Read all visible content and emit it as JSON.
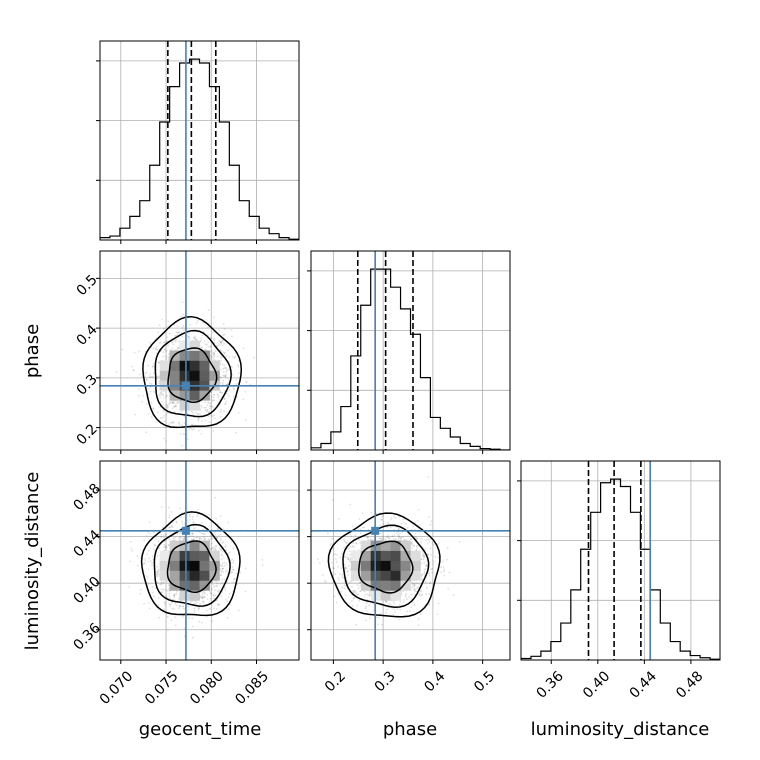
{
  "chart_data": {
    "type": "corner",
    "parameters": [
      {
        "name": "geocent_time",
        "label": "geocent_time",
        "range": [
          0.0677,
          0.0897
        ],
        "ticks": [
          0.07,
          0.075,
          0.08,
          0.085
        ],
        "tick_labels": [
          "0.070",
          "0.075",
          "0.080",
          "0.085"
        ],
        "truth": 0.0772,
        "quantiles": [
          0.0752,
          0.0778,
          0.0805
        ],
        "mean": 0.0778,
        "sd": 0.0022
      },
      {
        "name": "phase",
        "label": "phase",
        "range": [
          0.155,
          0.555
        ],
        "ticks": [
          0.2,
          0.3,
          0.4,
          0.5
        ],
        "tick_labels": [
          "0.2",
          "0.3",
          "0.4",
          "0.5"
        ],
        "truth": 0.284,
        "quantiles": [
          0.249,
          0.305,
          0.36
        ],
        "mean": 0.305,
        "sd": 0.045
      },
      {
        "name": "luminosity_distance",
        "label": "luminosity_distance",
        "range": [
          0.334,
          0.505
        ],
        "ticks": [
          0.36,
          0.4,
          0.44,
          0.48
        ],
        "tick_labels": [
          "0.36",
          "0.40",
          "0.44",
          "0.48"
        ],
        "truth": 0.445,
        "quantiles": [
          0.392,
          0.414,
          0.437
        ],
        "mean": 0.414,
        "sd": 0.018
      }
    ],
    "histograms": [
      {
        "param": "geocent_time",
        "edges": [
          0.0677,
          0.0688,
          0.0699,
          0.071,
          0.0721,
          0.0732,
          0.0743,
          0.0754,
          0.0765,
          0.0776,
          0.0787,
          0.0798,
          0.0809,
          0.082,
          0.0831,
          0.0842,
          0.0853,
          0.0864,
          0.0875,
          0.0886,
          0.0897
        ],
        "counts": [
          3,
          5,
          15,
          30,
          50,
          95,
          150,
          195,
          225,
          230,
          225,
          195,
          150,
          95,
          50,
          30,
          15,
          8,
          3,
          1
        ]
      },
      {
        "param": "phase",
        "edges": [
          0.155,
          0.175,
          0.195,
          0.215,
          0.235,
          0.255,
          0.275,
          0.295,
          0.315,
          0.335,
          0.355,
          0.375,
          0.395,
          0.415,
          0.435,
          0.455,
          0.475,
          0.495,
          0.515,
          0.535,
          0.555
        ],
        "counts": [
          3,
          9,
          25,
          60,
          130,
          200,
          250,
          250,
          225,
          195,
          160,
          100,
          45,
          30,
          18,
          9,
          5,
          2,
          1,
          0
        ]
      },
      {
        "param": "luminosity_distance",
        "edges": [
          0.334,
          0.3426,
          0.3511,
          0.3597,
          0.3682,
          0.3768,
          0.3853,
          0.3939,
          0.4024,
          0.411,
          0.4195,
          0.4281,
          0.4366,
          0.4452,
          0.4537,
          0.4623,
          0.4708,
          0.4794,
          0.4879,
          0.4965,
          0.505
        ],
        "counts": [
          2,
          5,
          12,
          25,
          50,
          95,
          150,
          200,
          240,
          245,
          235,
          200,
          150,
          95,
          50,
          25,
          12,
          6,
          3,
          1
        ]
      }
    ],
    "line_color": "#000000",
    "truth_color": "#4682b4",
    "grid": true
  }
}
